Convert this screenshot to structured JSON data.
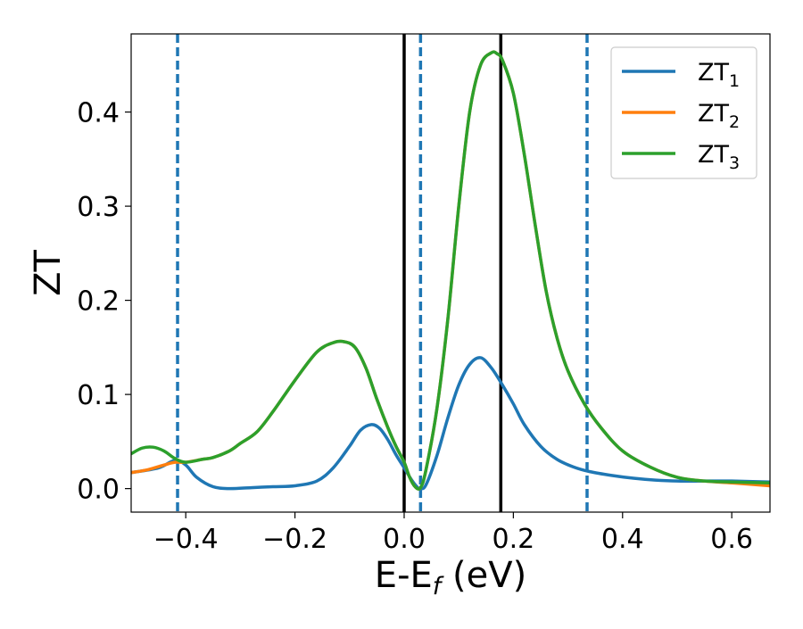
{
  "chart_data": {
    "type": "line",
    "title": "",
    "xlabel": "E-E",
    "xlabel_subscript": "f",
    "xlabel_suffix": " (eV)",
    "ylabel": "ZT",
    "xlim": [
      -0.5,
      0.67
    ],
    "ylim": [
      -0.025,
      0.483
    ],
    "grid": false,
    "legend_position": "top-right",
    "x_ticks": [
      -0.4,
      -0.2,
      0.0,
      0.2,
      0.4,
      0.6
    ],
    "x_tick_labels": [
      "−0.4",
      "−0.2",
      "0.0",
      "0.2",
      "0.4",
      "0.6"
    ],
    "y_ticks": [
      0.0,
      0.1,
      0.2,
      0.3,
      0.4
    ],
    "y_tick_labels": [
      "0.0",
      "0.1",
      "0.2",
      "0.3",
      "0.4"
    ],
    "vertical_lines": [
      {
        "x": -0.415,
        "style": "dashed",
        "color": "#1f77b4"
      },
      {
        "x": 0.03,
        "style": "dashed",
        "color": "#1f77b4"
      },
      {
        "x": 0.335,
        "style": "dashed",
        "color": "#1f77b4"
      },
      {
        "x": 0.0,
        "style": "solid",
        "color": "#000000"
      },
      {
        "x": 0.177,
        "style": "solid",
        "color": "#000000"
      }
    ],
    "series": [
      {
        "name": "ZT",
        "subscript": "1",
        "color": "#1f77b4",
        "x": [
          -0.5,
          -0.45,
          -0.42,
          -0.4,
          -0.38,
          -0.35,
          -0.32,
          -0.28,
          -0.24,
          -0.2,
          -0.16,
          -0.13,
          -0.1,
          -0.08,
          -0.06,
          -0.045,
          -0.03,
          -0.015,
          0.0,
          0.015,
          0.025,
          0.03,
          0.04,
          0.06,
          0.08,
          0.1,
          0.12,
          0.14,
          0.16,
          0.18,
          0.2,
          0.22,
          0.25,
          0.28,
          0.31,
          0.34,
          0.38,
          0.42,
          0.46,
          0.5,
          0.55,
          0.6,
          0.67
        ],
        "y": [
          0.017,
          0.022,
          0.03,
          0.025,
          0.012,
          0.002,
          0.0,
          0.001,
          0.002,
          0.003,
          0.008,
          0.022,
          0.045,
          0.062,
          0.068,
          0.064,
          0.052,
          0.036,
          0.022,
          0.008,
          0.001,
          0.0,
          0.004,
          0.035,
          0.075,
          0.11,
          0.132,
          0.139,
          0.128,
          0.11,
          0.09,
          0.068,
          0.045,
          0.031,
          0.023,
          0.018,
          0.014,
          0.011,
          0.009,
          0.008,
          0.008,
          0.008,
          0.007
        ]
      },
      {
        "name": "ZT",
        "subscript": "2",
        "color": "#ff7f0e",
        "x": [
          -0.5,
          -0.47,
          -0.44,
          -0.42,
          -0.4,
          -0.37,
          -0.35,
          -0.32,
          -0.3,
          -0.27,
          -0.24,
          -0.2,
          -0.16,
          -0.13,
          -0.11,
          -0.09,
          -0.07,
          -0.05,
          -0.03,
          -0.015,
          0.0,
          0.01,
          0.02,
          0.03,
          0.04,
          0.06,
          0.08,
          0.1,
          0.12,
          0.14,
          0.16,
          0.17,
          0.18,
          0.2,
          0.22,
          0.24,
          0.26,
          0.28,
          0.3,
          0.33,
          0.36,
          0.4,
          0.45,
          0.5,
          0.55,
          0.6,
          0.67
        ],
        "y": [
          0.017,
          0.02,
          0.025,
          0.028,
          0.028,
          0.031,
          0.033,
          0.04,
          0.048,
          0.06,
          0.082,
          0.115,
          0.145,
          0.155,
          0.156,
          0.15,
          0.128,
          0.095,
          0.065,
          0.045,
          0.028,
          0.012,
          0.002,
          0.001,
          0.02,
          0.085,
          0.18,
          0.3,
          0.4,
          0.45,
          0.463,
          0.462,
          0.455,
          0.42,
          0.355,
          0.28,
          0.21,
          0.16,
          0.125,
          0.09,
          0.065,
          0.04,
          0.023,
          0.012,
          0.008,
          0.006,
          0.003
        ]
      },
      {
        "name": "ZT",
        "subscript": "3",
        "color": "#2ca02c",
        "x": [
          -0.5,
          -0.48,
          -0.46,
          -0.44,
          -0.42,
          -0.4,
          -0.37,
          -0.35,
          -0.32,
          -0.3,
          -0.27,
          -0.24,
          -0.2,
          -0.16,
          -0.13,
          -0.11,
          -0.09,
          -0.07,
          -0.05,
          -0.03,
          -0.015,
          0.0,
          0.01,
          0.02,
          0.03,
          0.04,
          0.06,
          0.08,
          0.1,
          0.12,
          0.14,
          0.16,
          0.17,
          0.18,
          0.2,
          0.22,
          0.24,
          0.26,
          0.28,
          0.3,
          0.33,
          0.36,
          0.4,
          0.45,
          0.5,
          0.55,
          0.6,
          0.67
        ],
        "y": [
          0.037,
          0.043,
          0.044,
          0.04,
          0.032,
          0.028,
          0.031,
          0.033,
          0.04,
          0.048,
          0.06,
          0.082,
          0.115,
          0.145,
          0.155,
          0.156,
          0.15,
          0.128,
          0.095,
          0.065,
          0.045,
          0.028,
          0.012,
          0.002,
          0.001,
          0.02,
          0.085,
          0.18,
          0.3,
          0.4,
          0.45,
          0.463,
          0.462,
          0.455,
          0.42,
          0.355,
          0.28,
          0.21,
          0.16,
          0.125,
          0.09,
          0.065,
          0.04,
          0.023,
          0.012,
          0.008,
          0.007,
          0.006
        ]
      }
    ]
  }
}
